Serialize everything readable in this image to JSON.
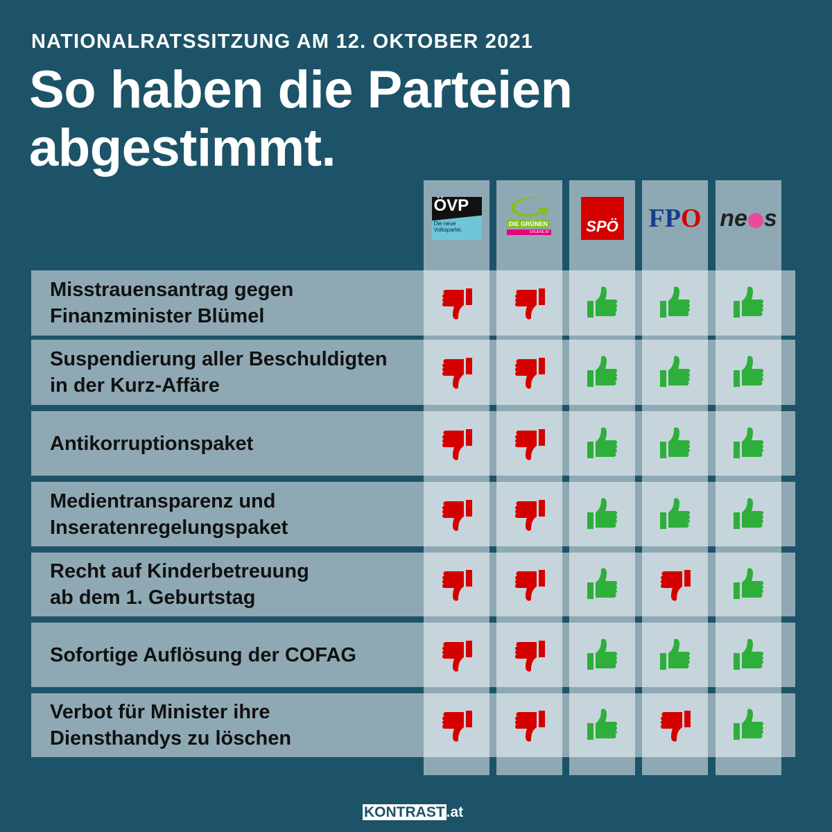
{
  "header": {
    "kicker": "NATIONALRATSSITZUNG AM 12. OKTOBER 2021",
    "title_line1": "So haben die Parteien",
    "title_line2": "abgestimmt."
  },
  "parties": [
    {
      "name": "ÖVP",
      "tagline": "Die neue Volkspartei."
    },
    {
      "name": "DIE GRÜNEN",
      "tagline": "GRUENE.AT"
    },
    {
      "name": "SPÖ"
    },
    {
      "name": "FPÖ",
      "logo_text": "FPÖ"
    },
    {
      "name": "neos",
      "logo_text": "neos"
    }
  ],
  "colors": {
    "background": "#1c5368",
    "yes": "#2eae3b",
    "no": "#d40000"
  },
  "rows": [
    {
      "label1": "Misstrauensantrag gegen",
      "label2": "Finanzminister Blümel",
      "votes": [
        "no",
        "no",
        "yes",
        "yes",
        "yes"
      ]
    },
    {
      "label1": "Suspendierung aller Beschuldigten",
      "label2": "in der Kurz-Affäre",
      "votes": [
        "no",
        "no",
        "yes",
        "yes",
        "yes"
      ]
    },
    {
      "label1": "Antikorruptionspaket",
      "label2": "",
      "votes": [
        "no",
        "no",
        "yes",
        "yes",
        "yes"
      ]
    },
    {
      "label1": "Medientransparenz und",
      "label2": "Inseratenregelungspaket",
      "votes": [
        "no",
        "no",
        "yes",
        "yes",
        "yes"
      ]
    },
    {
      "label1": "Recht auf Kinderbetreuung",
      "label2": "ab dem 1. Geburtstag",
      "votes": [
        "no",
        "no",
        "yes",
        "no",
        "yes"
      ]
    },
    {
      "label1": "Sofortige Auflösung der COFAG",
      "label2": "",
      "votes": [
        "no",
        "no",
        "yes",
        "yes",
        "yes"
      ]
    },
    {
      "label1": "Verbot für Minister ihre",
      "label2": "Diensthandys zu löschen",
      "votes": [
        "no",
        "no",
        "yes",
        "no",
        "yes"
      ]
    }
  ],
  "footer": {
    "brand": "KONTRAST",
    "tld": ".at"
  }
}
